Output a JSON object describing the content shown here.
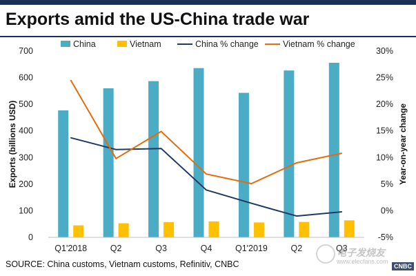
{
  "page": {
    "title": "Exports amid the US-China trade war",
    "source": "SOURCE: China customs, Vietnam customs, Refinitiv, CNBC",
    "topbar_color": "#1b2f57",
    "watermark": {
      "text": "电子发烧友",
      "url": "www.elecfans.com",
      "logo": "CNBC"
    }
  },
  "chart_data": {
    "type": "bar",
    "categories": [
      "Q1'2018",
      "Q2",
      "Q3",
      "Q4",
      "Q1'2019",
      "Q2",
      "Q3"
    ],
    "ylabel": "Exports (billions USD)",
    "y2label": "Year-on-year change",
    "ylim": [
      0,
      700
    ],
    "yticks": [
      0,
      100,
      200,
      300,
      400,
      500,
      600,
      700
    ],
    "y2lim": [
      -5,
      30
    ],
    "y2ticks": [
      "-5%",
      "0%",
      "5%",
      "10%",
      "15%",
      "20%",
      "25%",
      "30%"
    ],
    "legend_position": "top",
    "series": [
      {
        "name": "China",
        "kind": "bar",
        "axis": "left",
        "color": "#4bacc6",
        "values": [
          477,
          560,
          587,
          636,
          543,
          627,
          656
        ]
      },
      {
        "name": "Vietnam",
        "kind": "bar",
        "axis": "left",
        "color": "#ffc000",
        "values": [
          45,
          53,
          57,
          60,
          56,
          58,
          64
        ]
      },
      {
        "name": "China % change",
        "kind": "line",
        "axis": "right",
        "color": "#1f3864",
        "values": [
          13.7,
          11.5,
          11.7,
          3.9,
          1.4,
          -1.0,
          -0.2
        ]
      },
      {
        "name": "Vietnam % change",
        "kind": "line",
        "axis": "right",
        "color": "#e46c0a",
        "values": [
          24.5,
          9.8,
          14.9,
          6.9,
          5.1,
          9.0,
          10.8
        ]
      }
    ]
  }
}
